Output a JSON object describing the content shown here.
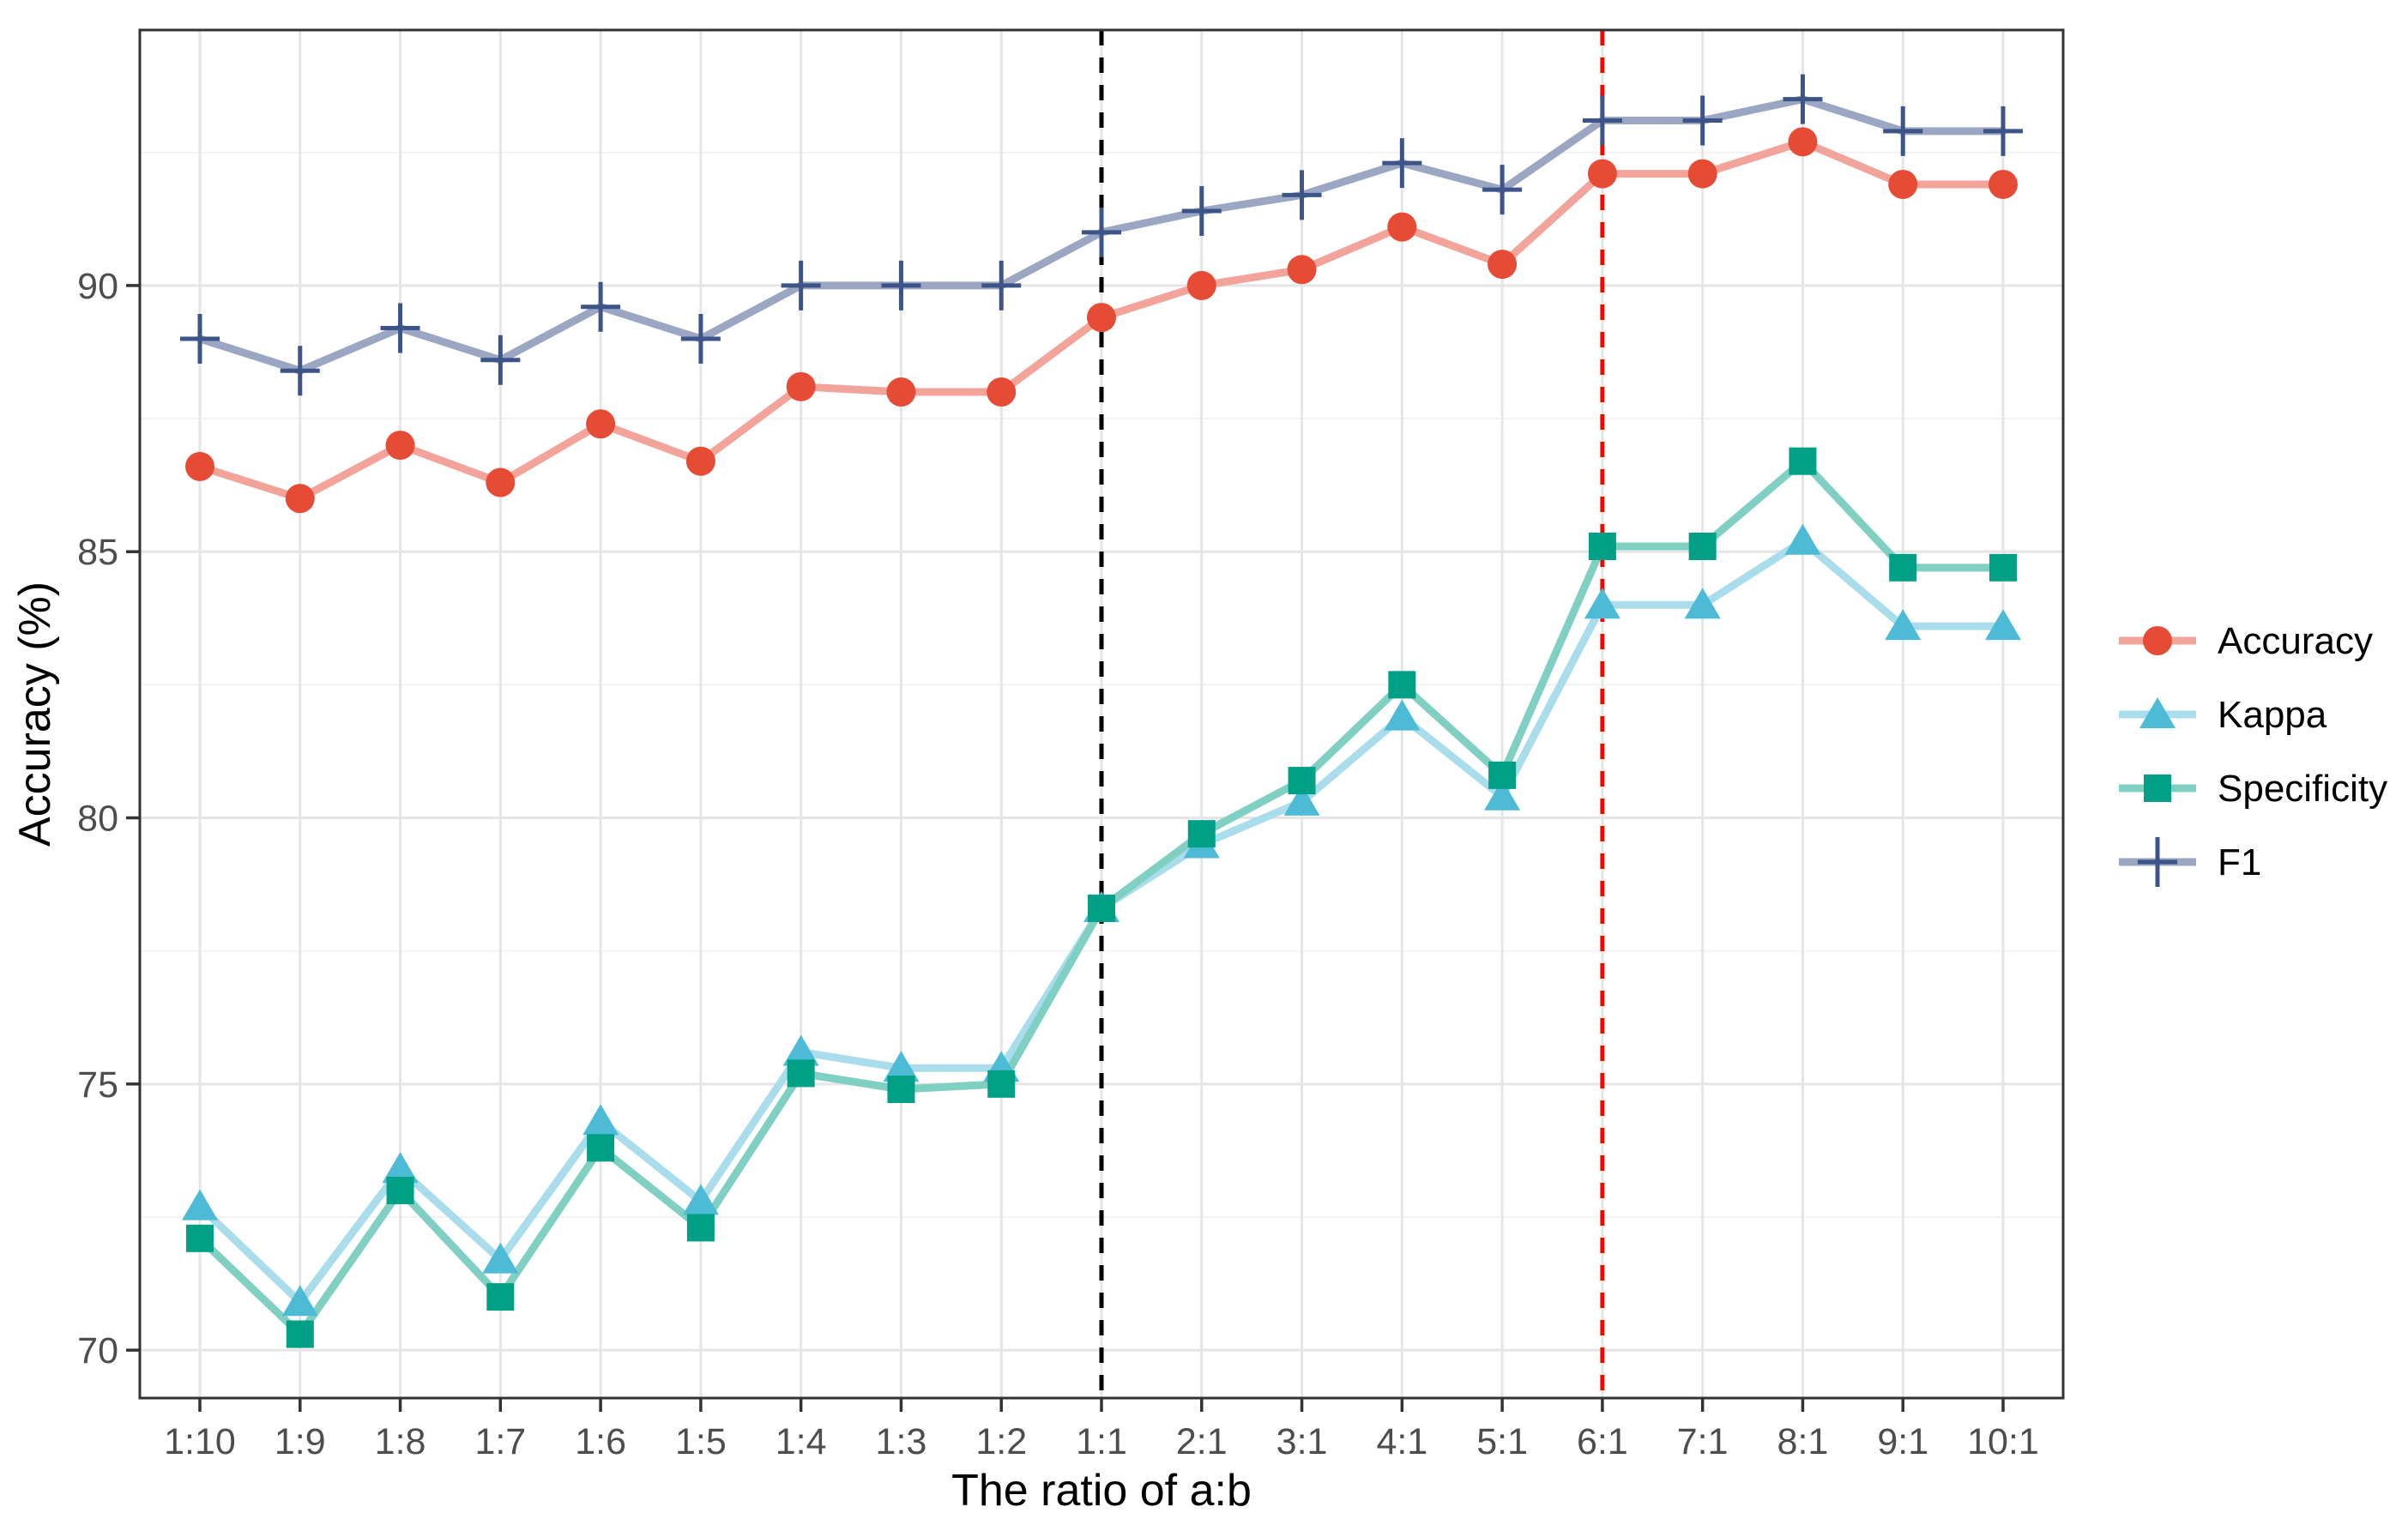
{
  "chart_data": {
    "type": "line",
    "title": "",
    "xlabel": "The ratio of a:b",
    "ylabel": "Accuracy (%)",
    "categories": [
      "1:10",
      "1:9",
      "1:8",
      "1:7",
      "1:6",
      "1:5",
      "1:4",
      "1:3",
      "1:2",
      "1:1",
      "2:1",
      "3:1",
      "4:1",
      "5:1",
      "6:1",
      "7:1",
      "8:1",
      "9:1",
      "10:1"
    ],
    "series": [
      {
        "name": "Accuracy",
        "marker": "circle",
        "color": "#E64B35",
        "line_color": "#F2A49A",
        "values": [
          86.6,
          86.0,
          87.0,
          86.3,
          87.4,
          86.7,
          88.1,
          88.0,
          88.0,
          89.4,
          90.0,
          90.3,
          91.1,
          90.4,
          92.1,
          92.1,
          92.7,
          91.9,
          91.9
        ]
      },
      {
        "name": "Kappa",
        "marker": "triangle",
        "color": "#4DBBD5",
        "line_color": "#A9DDEB",
        "values": [
          72.7,
          70.9,
          73.4,
          71.7,
          74.3,
          72.8,
          75.6,
          75.3,
          75.3,
          78.3,
          79.5,
          80.3,
          81.9,
          80.4,
          84.0,
          84.0,
          85.2,
          83.6,
          83.6
        ]
      },
      {
        "name": "Specificity",
        "marker": "square",
        "color": "#00A087",
        "line_color": "#7FD0C3",
        "values": [
          72.1,
          70.3,
          73.0,
          71.0,
          73.8,
          72.3,
          75.2,
          74.9,
          75.0,
          78.3,
          79.7,
          80.7,
          82.5,
          80.8,
          85.1,
          85.1,
          86.7,
          84.7,
          84.7
        ]
      },
      {
        "name": "F1",
        "marker": "plus",
        "color": "#3C5488",
        "line_color": "#9BA7C2",
        "values": [
          89.0,
          88.4,
          89.2,
          88.6,
          89.6,
          89.0,
          90.0,
          90.0,
          90.0,
          91.0,
          91.4,
          91.7,
          92.3,
          91.8,
          93.1,
          93.1,
          93.5,
          92.9,
          92.9
        ]
      }
    ],
    "y_ticks": [
      70,
      75,
      80,
      85,
      90
    ],
    "y_minor_ticks": [
      72.5,
      77.5,
      82.5,
      87.5,
      92.5
    ],
    "ylim": [
      69.1,
      94.8
    ],
    "grid": true,
    "legend_position": "right",
    "legend_labels": [
      "Accuracy",
      "Kappa",
      "Specificity",
      "F1"
    ],
    "vlines": [
      {
        "x": "1:1",
        "color": "#000000",
        "style": "dashed"
      },
      {
        "x": "6:1",
        "color": "#FF0000",
        "style": "dashed"
      }
    ],
    "colors": {
      "panel_border": "#333333",
      "major_grid": "#E5E5E5",
      "minor_grid": "#F2F2F2",
      "tick": "#333333",
      "tick_label": "#4D4D4D",
      "axis_title": "#000000",
      "background": "#FFFFFF"
    }
  }
}
